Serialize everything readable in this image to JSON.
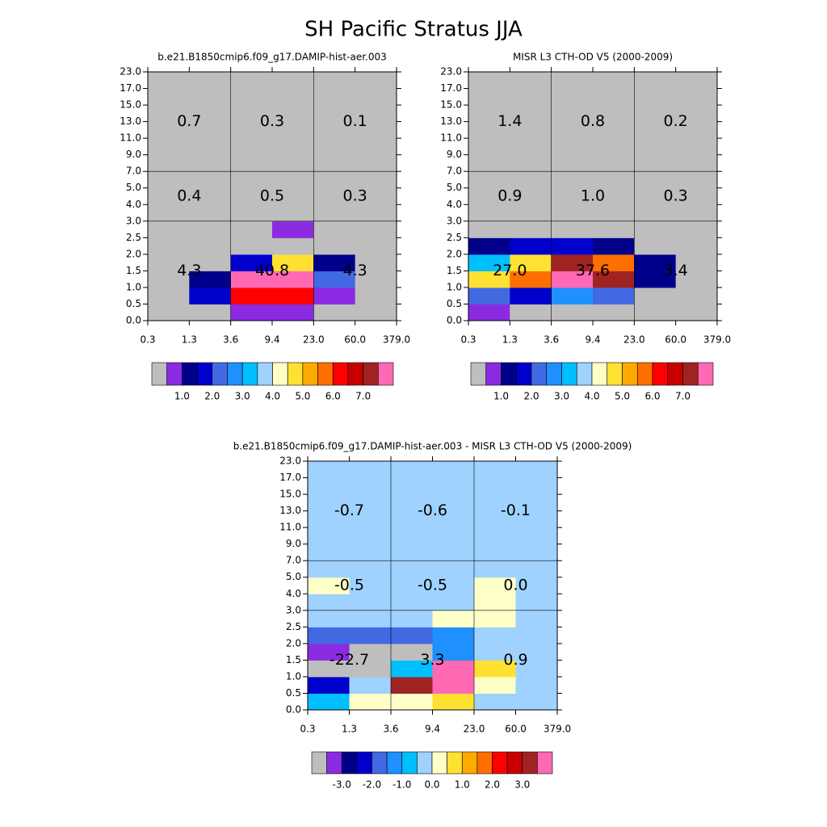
{
  "title": "SH Pacific Stratus JJA",
  "chart_data": [
    {
      "type": "heatmap",
      "title": "b.e21.B1850cmip6.f09_g17.DAMIP-hist-aer.003",
      "x_edges": [
        "0.3",
        "1.3",
        "3.6",
        "9.4",
        "23.0",
        "60.0",
        "379.0"
      ],
      "y_edges": [
        "0.0",
        "0.5",
        "1.0",
        "1.5",
        "2.0",
        "2.5",
        "3.0",
        "4.0",
        "5.0",
        "7.0",
        "9.0",
        "11.0",
        "13.0",
        "15.0",
        "17.0",
        "23.0"
      ],
      "values": [
        [
          0,
          0,
          0.75,
          0.75,
          0,
          0
        ],
        [
          0,
          1.75,
          6.25,
          6.25,
          0.75,
          0
        ],
        [
          0,
          1.25,
          8,
          8,
          2.25,
          0
        ],
        [
          0,
          0,
          1.75,
          4.75,
          1.25,
          0
        ],
        [
          0,
          0,
          0,
          0,
          0,
          0
        ],
        [
          0,
          0,
          0,
          0.75,
          0,
          0
        ],
        [
          0,
          0,
          0,
          0,
          0,
          0
        ],
        [
          0,
          0,
          0,
          0,
          0,
          0
        ],
        [
          0,
          0,
          0,
          0,
          0,
          0
        ],
        [
          0,
          0,
          0,
          0,
          0,
          0
        ],
        [
          0,
          0,
          0,
          0,
          0,
          0
        ],
        [
          0,
          0,
          0,
          0,
          0,
          0
        ],
        [
          0,
          0,
          0,
          0,
          0,
          0
        ],
        [
          0,
          0,
          0,
          0,
          0,
          0
        ],
        [
          0,
          0,
          0,
          0,
          0,
          0
        ]
      ],
      "region_labels": [
        [
          "4.3",
          "40.8",
          "4.3"
        ],
        [
          "0.4",
          "0.5",
          "0.3"
        ],
        [
          "0.7",
          "0.3",
          "0.1"
        ]
      ],
      "colorbar": {
        "levels": [
          0.5,
          1,
          1.5,
          2,
          2.5,
          3,
          3.5,
          4,
          4.5,
          5,
          5.5,
          6,
          6.5,
          7,
          7.5
        ],
        "colors": [
          "#bebebe",
          "#8a2be2",
          "#00008b",
          "#0000cd",
          "#4169e1",
          "#1e90ff",
          "#00bfff",
          "#a0d2ff",
          "#ffffc8",
          "#ffe132",
          "#ffaa00",
          "#ff6e00",
          "#ff0000",
          "#c80000",
          "#a02323",
          "#ff69b4"
        ],
        "ticks": [
          {
            "value": 1,
            "label": "1.0"
          },
          {
            "value": 2,
            "label": "2.0"
          },
          {
            "value": 3,
            "label": "3.0"
          },
          {
            "value": 4,
            "label": "4.0"
          },
          {
            "value": 5,
            "label": "5.0"
          },
          {
            "value": 6,
            "label": "6.0"
          },
          {
            "value": 7,
            "label": "7.0"
          }
        ]
      }
    },
    {
      "type": "heatmap",
      "title": "MISR L3 CTH-OD V5 (2000-2009)",
      "x_edges": [
        "0.3",
        "1.3",
        "3.6",
        "9.4",
        "23.0",
        "60.0",
        "379.0"
      ],
      "y_edges": [
        "0.0",
        "0.5",
        "1.0",
        "1.5",
        "2.0",
        "2.5",
        "3.0",
        "4.0",
        "5.0",
        "7.0",
        "9.0",
        "11.0",
        "13.0",
        "15.0",
        "17.0",
        "23.0"
      ],
      "values": [
        [
          0.75,
          0,
          0,
          0,
          0,
          0
        ],
        [
          2.25,
          1.75,
          2.75,
          2.25,
          0,
          0
        ],
        [
          4.75,
          5.75,
          8,
          7.25,
          1.25,
          0
        ],
        [
          3.25,
          4.75,
          7.25,
          5.75,
          1.25,
          0
        ],
        [
          1.25,
          1.75,
          1.75,
          1.25,
          0,
          0
        ],
        [
          0,
          0,
          0,
          0,
          0,
          0
        ],
        [
          0,
          0,
          0,
          0,
          0,
          0
        ],
        [
          0,
          0,
          0,
          0,
          0,
          0
        ],
        [
          0,
          0,
          0,
          0,
          0,
          0
        ],
        [
          0,
          0,
          0,
          0,
          0,
          0
        ],
        [
          0,
          0,
          0,
          0,
          0,
          0
        ],
        [
          0,
          0,
          0,
          0,
          0,
          0
        ],
        [
          0,
          0,
          0,
          0,
          0,
          0
        ],
        [
          0,
          0,
          0,
          0,
          0,
          0
        ],
        [
          0,
          0,
          0,
          0,
          0,
          0
        ]
      ],
      "region_labels": [
        [
          "27.0",
          "37.6",
          "3.4"
        ],
        [
          "0.9",
          "1.0",
          "0.3"
        ],
        [
          "1.4",
          "0.8",
          "0.2"
        ]
      ],
      "colorbar": {
        "levels": [
          0.5,
          1,
          1.5,
          2,
          2.5,
          3,
          3.5,
          4,
          4.5,
          5,
          5.5,
          6,
          6.5,
          7,
          7.5
        ],
        "colors": [
          "#bebebe",
          "#8a2be2",
          "#00008b",
          "#0000cd",
          "#4169e1",
          "#1e90ff",
          "#00bfff",
          "#a0d2ff",
          "#ffffc8",
          "#ffe132",
          "#ffaa00",
          "#ff6e00",
          "#ff0000",
          "#c80000",
          "#a02323",
          "#ff69b4"
        ],
        "ticks": [
          {
            "value": 1,
            "label": "1.0"
          },
          {
            "value": 2,
            "label": "2.0"
          },
          {
            "value": 3,
            "label": "3.0"
          },
          {
            "value": 4,
            "label": "4.0"
          },
          {
            "value": 5,
            "label": "5.0"
          },
          {
            "value": 6,
            "label": "6.0"
          },
          {
            "value": 7,
            "label": "7.0"
          }
        ]
      }
    },
    {
      "type": "heatmap",
      "title": "b.e21.B1850cmip6.f09_g17.DAMIP-hist-aer.003 - MISR L3 CTH-OD V5 (2000-2009)",
      "x_edges": [
        "0.3",
        "1.3",
        "3.6",
        "9.4",
        "23.0",
        "60.0",
        "379.0"
      ],
      "y_edges": [
        "0.0",
        "0.5",
        "1.0",
        "1.5",
        "2.0",
        "2.5",
        "3.0",
        "4.0",
        "5.0",
        "7.0",
        "9.0",
        "11.0",
        "13.0",
        "15.0",
        "17.0",
        "23.0"
      ],
      "values": [
        [
          -0.75,
          0.25,
          0.25,
          0.75,
          -0.25,
          -0.25
        ],
        [
          -2.25,
          -0.25,
          3.25,
          4,
          0.25,
          -0.25
        ],
        [
          -4,
          -4,
          -0.75,
          4,
          0.75,
          -0.25
        ],
        [
          -3.25,
          -4,
          -4,
          -1.25,
          -0.25,
          -0.25
        ],
        [
          -1.75,
          -1.75,
          -1.75,
          -1.25,
          -0.25,
          -0.25
        ],
        [
          -0.25,
          -0.25,
          -0.25,
          0.25,
          0.25,
          -0.25
        ],
        [
          -0.25,
          -0.25,
          -0.25,
          -0.25,
          0.25,
          -0.25
        ],
        [
          0.25,
          -0.25,
          -0.25,
          -0.25,
          0.25,
          -0.25
        ],
        [
          -0.25,
          -0.25,
          -0.25,
          -0.25,
          -0.25,
          -0.25
        ],
        [
          -0.25,
          -0.25,
          -0.25,
          -0.25,
          -0.25,
          -0.25
        ],
        [
          -0.25,
          -0.25,
          -0.25,
          -0.25,
          -0.25,
          -0.25
        ],
        [
          -0.25,
          -0.25,
          -0.25,
          -0.25,
          -0.25,
          -0.25
        ],
        [
          -0.25,
          -0.25,
          -0.25,
          -0.25,
          -0.25,
          -0.25
        ],
        [
          -0.25,
          -0.25,
          -0.25,
          -0.25,
          -0.25,
          -0.25
        ],
        [
          -0.25,
          -0.25,
          -0.25,
          -0.25,
          -0.25,
          -0.25
        ]
      ],
      "region_labels": [
        [
          "-22.7",
          "3.3",
          "0.9"
        ],
        [
          "-0.5",
          "-0.5",
          "0.0"
        ],
        [
          "-0.7",
          "-0.6",
          "-0.1"
        ]
      ],
      "colorbar": {
        "levels": [
          -3.5,
          -3,
          -2.5,
          -2,
          -1.5,
          -1,
          -0.5,
          0,
          0.5,
          1,
          1.5,
          2,
          2.5,
          3,
          3.5
        ],
        "colors": [
          "#bebebe",
          "#8a2be2",
          "#00008b",
          "#0000cd",
          "#4169e1",
          "#1e90ff",
          "#00bfff",
          "#a0d2ff",
          "#ffffc8",
          "#ffe132",
          "#ffaa00",
          "#ff6e00",
          "#ff0000",
          "#c80000",
          "#a02323",
          "#ff69b4"
        ],
        "ticks": [
          {
            "value": -3,
            "label": "-3.0"
          },
          {
            "value": -2,
            "label": "-2.0"
          },
          {
            "value": -1,
            "label": "-1.0"
          },
          {
            "value": 0,
            "label": "0.0"
          },
          {
            "value": 1,
            "label": "1.0"
          },
          {
            "value": 2,
            "label": "2.0"
          },
          {
            "value": 3,
            "label": "3.0"
          }
        ]
      }
    }
  ]
}
